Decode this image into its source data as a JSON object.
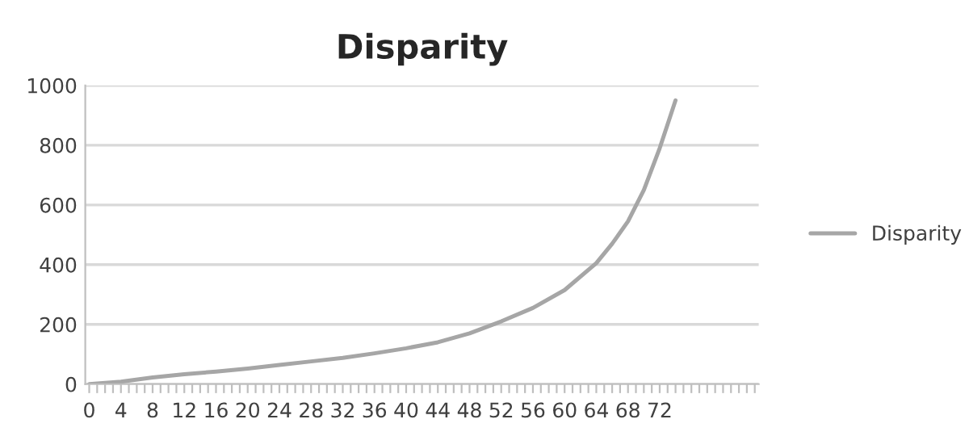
{
  "chart_data": {
    "type": "line",
    "title": "Disparity",
    "series": [
      {
        "name": "Disparity",
        "color": "#a6a6a6",
        "x": [
          0,
          4,
          8,
          12,
          16,
          20,
          24,
          28,
          32,
          36,
          40,
          44,
          48,
          52,
          56,
          60,
          64,
          66,
          68,
          70,
          72,
          73,
          74
        ],
        "values": [
          0,
          8,
          22,
          33,
          42,
          52,
          64,
          76,
          88,
          103,
          120,
          140,
          170,
          210,
          255,
          315,
          405,
          470,
          545,
          650,
          790,
          870,
          950
        ]
      }
    ],
    "xlim": [
      -0.5,
      84.5
    ],
    "xticks": [
      0,
      {
        "value": 1,
        "label": null
      },
      {
        "value": 2,
        "label": null
      },
      {
        "value": 3,
        "label": null
      },
      4,
      {
        "value": 5,
        "label": null
      },
      {
        "value": 6,
        "label": null
      },
      {
        "value": 7,
        "label": null
      },
      8,
      {
        "value": 9,
        "label": null
      },
      {
        "value": 10,
        "label": null
      },
      {
        "value": 11,
        "label": null
      },
      12,
      {
        "value": 13,
        "label": null
      },
      {
        "value": 14,
        "label": null
      },
      {
        "value": 15,
        "label": null
      },
      16,
      {
        "value": 17,
        "label": null
      },
      {
        "value": 18,
        "label": null
      },
      {
        "value": 19,
        "label": null
      },
      20,
      {
        "value": 21,
        "label": null
      },
      {
        "value": 22,
        "label": null
      },
      {
        "value": 23,
        "label": null
      },
      24,
      {
        "value": 25,
        "label": null
      },
      {
        "value": 26,
        "label": null
      },
      {
        "value": 27,
        "label": null
      },
      28,
      {
        "value": 29,
        "label": null
      },
      {
        "value": 30,
        "label": null
      },
      {
        "value": 31,
        "label": null
      },
      32,
      {
        "value": 33,
        "label": null
      },
      {
        "value": 34,
        "label": null
      },
      {
        "value": 35,
        "label": null
      },
      36,
      {
        "value": 37,
        "label": null
      },
      {
        "value": 38,
        "label": null
      },
      {
        "value": 39,
        "label": null
      },
      40,
      {
        "value": 41,
        "label": null
      },
      {
        "value": 42,
        "label": null
      },
      {
        "value": 43,
        "label": null
      },
      44,
      {
        "value": 45,
        "label": null
      },
      {
        "value": 46,
        "label": null
      },
      {
        "value": 47,
        "label": null
      },
      48,
      {
        "value": 49,
        "label": null
      },
      {
        "value": 50,
        "label": null
      },
      {
        "value": 51,
        "label": null
      },
      52,
      {
        "value": 53,
        "label": null
      },
      {
        "value": 54,
        "label": null
      },
      {
        "value": 55,
        "label": null
      },
      56,
      {
        "value": 57,
        "label": null
      },
      {
        "value": 58,
        "label": null
      },
      {
        "value": 59,
        "label": null
      },
      60,
      {
        "value": 61,
        "label": null
      },
      {
        "value": 62,
        "label": null
      },
      {
        "value": 63,
        "label": null
      },
      64,
      {
        "value": 65,
        "label": null
      },
      {
        "value": 66,
        "label": null
      },
      {
        "value": 67,
        "label": null
      },
      68,
      {
        "value": 69,
        "label": null
      },
      {
        "value": 70,
        "label": null
      },
      {
        "value": 71,
        "label": null
      },
      72,
      {
        "value": 73,
        "label": null
      },
      {
        "value": 74,
        "label": null
      },
      {
        "value": 75,
        "label": null
      },
      {
        "value": 76,
        "label": null
      },
      {
        "value": 77,
        "label": null
      },
      {
        "value": 78,
        "label": null
      },
      {
        "value": 79,
        "label": null
      },
      {
        "value": 80,
        "label": null
      },
      {
        "value": 81,
        "label": null
      },
      {
        "value": 82,
        "label": null
      },
      {
        "value": 83,
        "label": null
      },
      {
        "value": 84,
        "label": null
      }
    ],
    "ylim": [
      0,
      1000
    ],
    "yticks": [
      0,
      200,
      400,
      600,
      800,
      1000
    ],
    "grid": "y",
    "legend": "right",
    "marker": "none",
    "line_style": "solid"
  }
}
